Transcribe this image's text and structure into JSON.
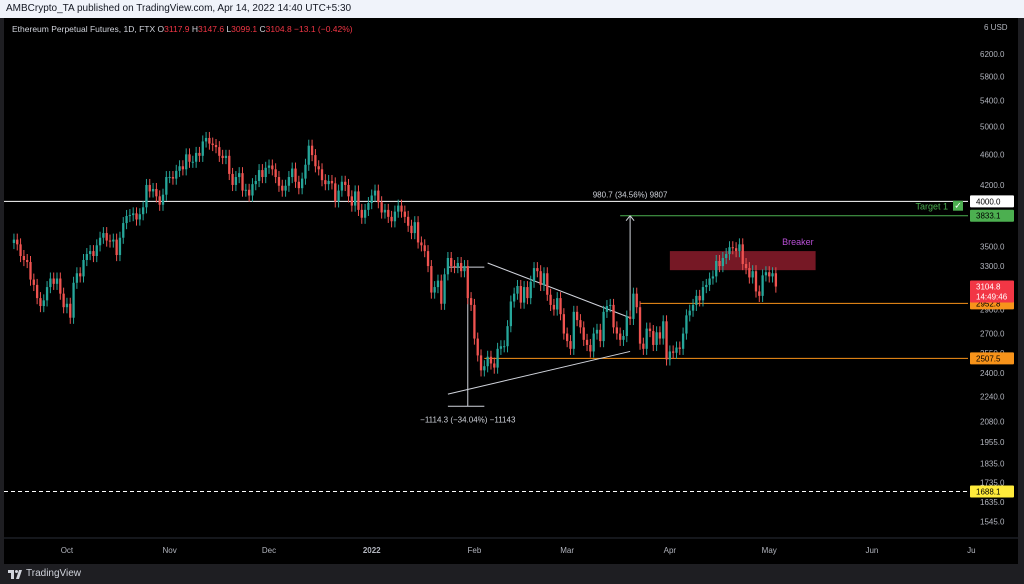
{
  "header": {
    "publish_line": "AMBCrypto_TA published on TradingView.com, Apr 14, 2022 14:40 UTC+5:30"
  },
  "legend": {
    "symbol": "Ethereum Perpetual Futures, 1D, FTX",
    "o_label": "O",
    "o": "3117.9",
    "h_label": "H",
    "h": "3147.6",
    "l_label": "L",
    "l": "3099.1",
    "c_label": "C",
    "c": "3104.8",
    "change": "−13.1 (−0.42%)"
  },
  "footer": {
    "brand": "TradingView"
  },
  "colors": {
    "up": "#26a69a",
    "down": "#ef5350",
    "orange": "#f7931a",
    "green": "#4caf50",
    "breaker": "#8b1c2b",
    "breaker_text": "#b84fd6",
    "yellow": "#ffeb3b"
  },
  "chart_data": {
    "type": "candlestick",
    "title": "Ethereum Perpetual Futures, 1D, FTX",
    "currency_label": "USD",
    "y_log_scale": true,
    "ylim": [
      1470,
      6900
    ],
    "x_range": [
      "2022-09-12",
      "2022-06-30"
    ],
    "y_ticks": [
      "6200.0",
      "5800.0",
      "5400.0",
      "5000.0",
      "4600.0",
      "4200.0",
      "3800.0",
      "3500.0",
      "3300.0",
      "3100.0",
      "2900.0",
      "2700.0",
      "2550.0",
      "2400.0",
      "2240.0",
      "2080.0",
      "1955.0",
      "1835.0",
      "1735.0",
      "1635.0",
      "1545.0"
    ],
    "x_ticks": [
      {
        "label": "Oct",
        "date": "2021-10-01"
      },
      {
        "label": "Nov",
        "date": "2021-11-01"
      },
      {
        "label": "Dec",
        "date": "2021-12-01"
      },
      {
        "label": "2022",
        "date": "2022-01-01"
      },
      {
        "label": "Feb",
        "date": "2022-02-01"
      },
      {
        "label": "Mar",
        "date": "2022-03-01"
      },
      {
        "label": "Apr",
        "date": "2022-04-01"
      },
      {
        "label": "May",
        "date": "2022-05-01"
      },
      {
        "label": "Jun",
        "date": "2022-06-01"
      },
      {
        "label": "Ju",
        "date": "2022-07-01"
      }
    ],
    "candles_start": "2021-09-15",
    "candles_close": [
      3570,
      3520,
      3400,
      3360,
      3340,
      3170,
      3120,
      3000,
      2930,
      2980,
      3100,
      3180,
      3130,
      3180,
      3040,
      2920,
      2950,
      2830,
      3140,
      3230,
      3200,
      3360,
      3420,
      3450,
      3400,
      3510,
      3590,
      3640,
      3560,
      3550,
      3570,
      3410,
      3590,
      3750,
      3830,
      3840,
      3860,
      3790,
      3850,
      3930,
      4200,
      4120,
      4150,
      4060,
      3960,
      4080,
      4300,
      4300,
      4280,
      4380,
      4440,
      4400,
      4600,
      4500,
      4500,
      4620,
      4580,
      4780,
      4830,
      4750,
      4730,
      4700,
      4580,
      4550,
      4580,
      4340,
      4200,
      4300,
      4350,
      4130,
      4140,
      4070,
      4210,
      4250,
      4390,
      4300,
      4420,
      4450,
      4400,
      4300,
      4190,
      4130,
      4190,
      4300,
      4410,
      4240,
      4160,
      4280,
      4460,
      4720,
      4590,
      4440,
      4400,
      4260,
      4210,
      4250,
      4220,
      4000,
      4130,
      4240,
      4200,
      4060,
      3950,
      4120,
      3900,
      3810,
      3900,
      3980,
      4070,
      4130,
      3990,
      3870,
      3900,
      3820,
      3770,
      3880,
      3950,
      3880,
      3820,
      3720,
      3640,
      3760,
      3540,
      3510,
      3450,
      3300,
      3050,
      3100,
      3160,
      2950,
      3220,
      3380,
      3300,
      3290,
      3330,
      3250,
      3300,
      3000,
      2940,
      2660,
      2530,
      2420,
      2450,
      2520,
      2470,
      2440,
      2580,
      2600,
      2600,
      2760,
      2970,
      3040,
      3110,
      2960,
      3100,
      3000,
      3150,
      3280,
      3250,
      3120,
      3230,
      3030,
      2940,
      2900,
      3000,
      2860,
      2700,
      2640,
      2580,
      2880,
      2810,
      2750,
      2650,
      2610,
      2560,
      2700,
      2730,
      2640,
      2880,
      2930,
      2940,
      2750,
      2700,
      2650,
      2680,
      2840,
      2820,
      3040,
      2920,
      2620,
      2580,
      2740,
      2720,
      2610,
      2710,
      2660,
      2800,
      2500,
      2560,
      2550,
      2590,
      2580,
      2700,
      2850,
      2890,
      2940,
      3020,
      2980,
      3100,
      3120,
      3180,
      3200,
      3350,
      3300,
      3380,
      3420,
      3490,
      3480,
      3450,
      3520,
      3320,
      3280,
      3190,
      3250,
      3060,
      3020,
      3210,
      3240,
      3200,
      3230,
      3105
    ],
    "pattern_labels": {
      "breaker": "Breaker",
      "target": "Target 1",
      "target_check": "✓",
      "measure_up": "980.7 (34.56%) 9807",
      "measure_down": "−1114.3 (−34.04%) −11143"
    },
    "levels": [
      {
        "label": "4000.0",
        "value": 4000.0
      },
      {
        "label": "3833.1",
        "value": 3833.1
      },
      {
        "label": "2952.8",
        "value": 2952.8
      },
      {
        "label": "2507.5",
        "value": 2507.5
      },
      {
        "label": "1688.1",
        "value": 1688.1
      }
    ],
    "breaker_zone": {
      "from": "2022-04-01",
      "to": "2022-05-15",
      "low": 3260,
      "high": 3450
    },
    "last_price": {
      "value": 3104.8,
      "label": "3104.8",
      "timer": "14:49:46"
    },
    "top_level_partial": "6"
  }
}
